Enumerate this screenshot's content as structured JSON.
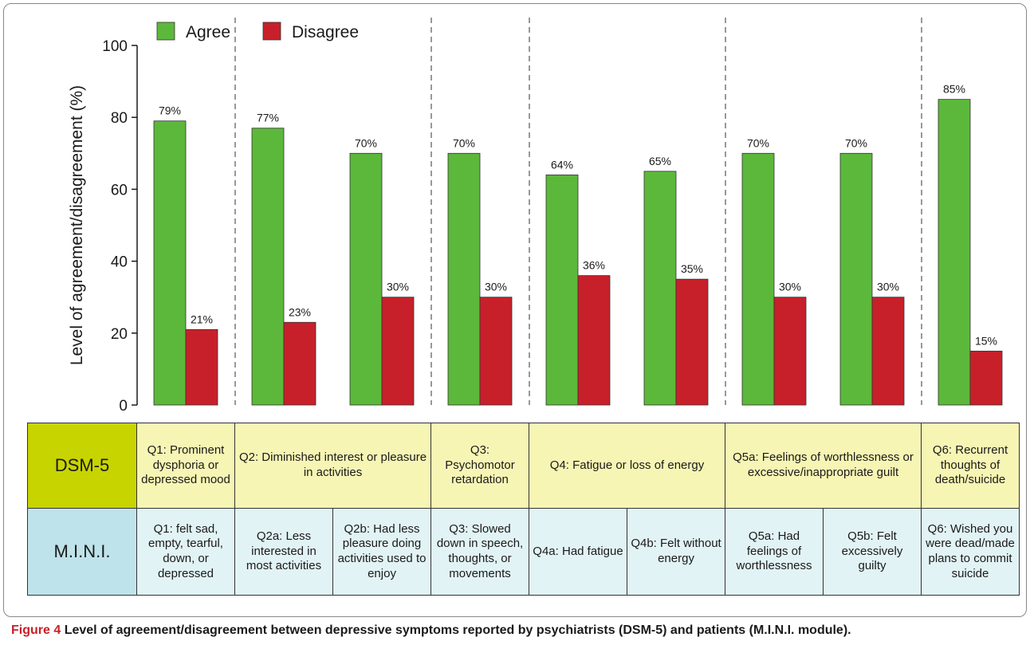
{
  "chart_data": {
    "type": "bar",
    "categories": [
      "Q1",
      "Q2a",
      "Q2b",
      "Q3",
      "Q4a",
      "Q4b",
      "Q5a",
      "Q5b",
      "Q6"
    ],
    "series": [
      {
        "name": "Agree",
        "values": [
          79,
          77,
          70,
          70,
          64,
          65,
          70,
          70,
          85
        ],
        "color": "#5cb83a"
      },
      {
        "name": "Disagree",
        "values": [
          21,
          23,
          30,
          30,
          36,
          35,
          30,
          30,
          15
        ],
        "color": "#c8202a"
      }
    ],
    "value_labels": {
      "Agree": [
        "79%",
        "77%",
        "70%",
        "70%",
        "64%",
        "65%",
        "70%",
        "70%",
        "85%"
      ],
      "Disagree": [
        "21%",
        "23%",
        "30%",
        "30%",
        "36%",
        "35%",
        "30%",
        "30%",
        "15%"
      ]
    },
    "ylabel": "Level of agreement/disagreement (%)",
    "ylim": [
      0,
      100
    ],
    "yticks": [
      "0",
      "20",
      "40",
      "60",
      "80",
      "100"
    ],
    "groups": [
      1,
      2,
      1,
      2,
      2,
      1
    ],
    "legend": "top-left",
    "grid": false
  },
  "table": {
    "dsm_label": "DSM-5",
    "mini_label": "M.I.N.I.",
    "dsm": [
      "Q1: Prominent dysphoria or depressed mood",
      "Q2: Diminished interest or pleasure in activities",
      "Q3: Psychomotor retardation",
      "Q4: Fatigue or loss of energy",
      "Q5a: Feelings of worthlessness or excessive/inappropriate guilt",
      "Q6: Recurrent thoughts of death/suicide"
    ],
    "mini": [
      "Q1: felt sad, empty, tearful, down, or depressed",
      "Q2a: Less interested in most activities",
      "Q2b: Had less pleasure doing activities used to enjoy",
      "Q3: Slowed down in speech, thoughts, or movements",
      "Q4a: Had fatigue",
      "Q4b: Felt without energy",
      "Q5a: Had feelings of worthlessness",
      "Q5b: Felt excessively guilty",
      "Q6: Wished you were dead/made plans to commit suicide"
    ]
  },
  "caption": {
    "label": "Figure 4",
    "text": "Level of agreement/disagreement between depressive symptoms reported by psychiatrists (DSM-5) and patients (M.I.N.I. module)."
  }
}
